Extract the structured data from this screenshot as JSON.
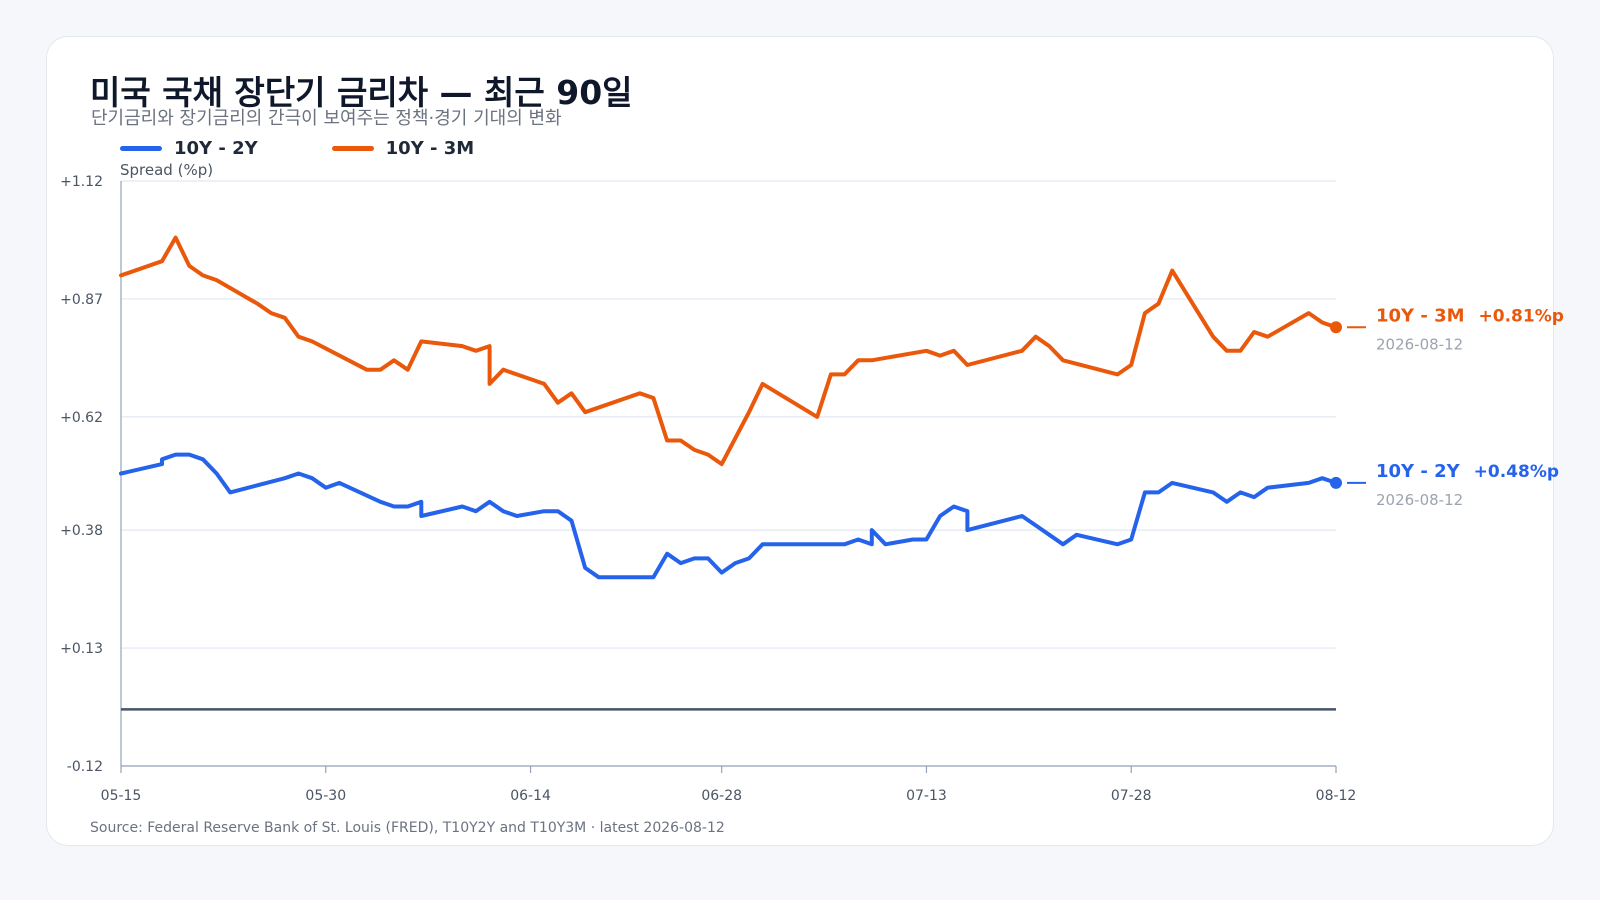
{
  "title": "미국 국채 장단기 금리차 — 최근 90일",
  "subtitle": "단기금리와 장기금리의 간극이 보여주는 정책·경기 기대의 변화",
  "source": "Source: Federal Reserve Bank of St. Louis (FRED), T10Y2Y and T10Y3M · latest 2026-08-12",
  "colors": {
    "series_10y2y": "#2563eb",
    "series_10y3m": "#ea580c",
    "grid": "#e2e8f0",
    "axis": "#94a3b8",
    "zero_line": "#475569"
  },
  "chart_data": {
    "type": "line",
    "title": "미국 국채 장단기 금리차 — 최근 90일",
    "subtitle": "단기금리와 장기금리의 간극이 보여주는 정책·경기 기대의 변화",
    "ylabel": "Spread (%p)",
    "ylim": [
      -0.12,
      1.12
    ],
    "yticks": [
      "+1.12",
      "+0.87",
      "+0.62",
      "+0.38",
      "+0.13",
      "-0.12"
    ],
    "ytick_values": [
      1.12,
      0.87,
      0.62,
      0.38,
      0.13,
      -0.12
    ],
    "x_start": "2026-05-15",
    "x_end": "2026-08-12",
    "xticks": [
      {
        "label": "05-15",
        "date": "2026-05-15"
      },
      {
        "label": "05-30",
        "date": "2026-05-30"
      },
      {
        "label": "06-14",
        "date": "2026-06-14"
      },
      {
        "label": "06-28",
        "date": "2026-06-28"
      },
      {
        "label": "07-13",
        "date": "2026-07-13"
      },
      {
        "label": "07-28",
        "date": "2026-07-28"
      },
      {
        "label": "08-12",
        "date": "2026-08-12"
      }
    ],
    "zero_line": 0,
    "legend_position": "top-left",
    "grid": true,
    "series": [
      {
        "name": "10Y - 2Y",
        "color": "#2563eb",
        "end_value_label": "+0.48%p",
        "end_date_label": "2026-08-12",
        "points": [
          [
            "2026-05-15",
            0.5
          ],
          [
            "2026-05-18",
            0.52
          ],
          [
            "2026-05-18",
            0.53
          ],
          [
            "2026-05-19",
            0.54
          ],
          [
            "2026-05-20",
            0.54
          ],
          [
            "2026-05-21",
            0.53
          ],
          [
            "2026-05-22",
            0.5
          ],
          [
            "2026-05-23",
            0.46
          ],
          [
            "2026-05-27",
            0.49
          ],
          [
            "2026-05-28",
            0.5
          ],
          [
            "2026-05-29",
            0.49
          ],
          [
            "2026-05-30",
            0.47
          ],
          [
            "2026-05-31",
            0.48
          ],
          [
            "2026-06-03",
            0.44
          ],
          [
            "2026-06-04",
            0.43
          ],
          [
            "2026-06-05",
            0.43
          ],
          [
            "2026-06-06",
            0.44
          ],
          [
            "2026-06-06",
            0.41
          ],
          [
            "2026-06-09",
            0.43
          ],
          [
            "2026-06-10",
            0.42
          ],
          [
            "2026-06-11",
            0.44
          ],
          [
            "2026-06-12",
            0.42
          ],
          [
            "2026-06-13",
            0.41
          ],
          [
            "2026-06-15",
            0.42
          ],
          [
            "2026-06-16",
            0.42
          ],
          [
            "2026-06-17",
            0.4
          ],
          [
            "2026-06-18",
            0.3
          ],
          [
            "2026-06-19",
            0.28
          ],
          [
            "2026-06-20",
            0.28
          ],
          [
            "2026-06-22",
            0.28
          ],
          [
            "2026-06-23",
            0.28
          ],
          [
            "2026-06-24",
            0.33
          ],
          [
            "2026-06-25",
            0.31
          ],
          [
            "2026-06-26",
            0.32
          ],
          [
            "2026-06-27",
            0.32
          ],
          [
            "2026-06-28",
            0.29
          ],
          [
            "2026-06-29",
            0.31
          ],
          [
            "2026-06-30",
            0.32
          ],
          [
            "2026-07-01",
            0.35
          ],
          [
            "2026-07-03",
            0.35
          ],
          [
            "2026-07-05",
            0.35
          ],
          [
            "2026-07-07",
            0.35
          ],
          [
            "2026-07-08",
            0.36
          ],
          [
            "2026-07-09",
            0.35
          ],
          [
            "2026-07-09",
            0.38
          ],
          [
            "2026-07-10",
            0.35
          ],
          [
            "2026-07-12",
            0.36
          ],
          [
            "2026-07-13",
            0.36
          ],
          [
            "2026-07-14",
            0.41
          ],
          [
            "2026-07-15",
            0.43
          ],
          [
            "2026-07-16",
            0.42
          ],
          [
            "2026-07-16",
            0.38
          ],
          [
            "2026-07-20",
            0.41
          ],
          [
            "2026-07-21",
            0.39
          ],
          [
            "2026-07-22",
            0.37
          ],
          [
            "2026-07-23",
            0.35
          ],
          [
            "2026-07-24",
            0.37
          ],
          [
            "2026-07-27",
            0.35
          ],
          [
            "2026-07-28",
            0.36
          ],
          [
            "2026-07-29",
            0.46
          ],
          [
            "2026-07-30",
            0.46
          ],
          [
            "2026-07-31",
            0.48
          ],
          [
            "2026-08-03",
            0.46
          ],
          [
            "2026-08-04",
            0.44
          ],
          [
            "2026-08-05",
            0.46
          ],
          [
            "2026-08-06",
            0.45
          ],
          [
            "2026-08-07",
            0.47
          ],
          [
            "2026-08-10",
            0.48
          ],
          [
            "2026-08-11",
            0.49
          ],
          [
            "2026-08-12",
            0.48
          ]
        ]
      },
      {
        "name": "10Y - 3M",
        "color": "#ea580c",
        "end_value_label": "+0.81%p",
        "end_date_label": "2026-08-12",
        "points": [
          [
            "2026-05-15",
            0.92
          ],
          [
            "2026-05-18",
            0.95
          ],
          [
            "2026-05-19",
            1.0
          ],
          [
            "2026-05-20",
            0.94
          ],
          [
            "2026-05-21",
            0.92
          ],
          [
            "2026-05-22",
            0.91
          ],
          [
            "2026-05-25",
            0.86
          ],
          [
            "2026-05-26",
            0.84
          ],
          [
            "2026-05-27",
            0.83
          ],
          [
            "2026-05-28",
            0.79
          ],
          [
            "2026-05-29",
            0.78
          ],
          [
            "2026-06-02",
            0.72
          ],
          [
            "2026-06-03",
            0.72
          ],
          [
            "2026-06-04",
            0.74
          ],
          [
            "2026-06-05",
            0.72
          ],
          [
            "2026-06-06",
            0.78
          ],
          [
            "2026-06-09",
            0.77
          ],
          [
            "2026-06-10",
            0.76
          ],
          [
            "2026-06-11",
            0.77
          ],
          [
            "2026-06-11",
            0.69
          ],
          [
            "2026-06-12",
            0.72
          ],
          [
            "2026-06-14",
            0.7
          ],
          [
            "2026-06-15",
            0.69
          ],
          [
            "2026-06-16",
            0.65
          ],
          [
            "2026-06-17",
            0.67
          ],
          [
            "2026-06-18",
            0.63
          ],
          [
            "2026-06-22",
            0.67
          ],
          [
            "2026-06-23",
            0.66
          ],
          [
            "2026-06-24",
            0.57
          ],
          [
            "2026-06-25",
            0.57
          ],
          [
            "2026-06-26",
            0.55
          ],
          [
            "2026-06-27",
            0.54
          ],
          [
            "2026-06-28",
            0.52
          ],
          [
            "2026-06-30",
            0.63
          ],
          [
            "2026-07-01",
            0.69
          ],
          [
            "2026-07-05",
            0.62
          ],
          [
            "2026-07-06",
            0.71
          ],
          [
            "2026-07-07",
            0.71
          ],
          [
            "2026-07-08",
            0.74
          ],
          [
            "2026-07-09",
            0.74
          ],
          [
            "2026-07-13",
            0.76
          ],
          [
            "2026-07-14",
            0.75
          ],
          [
            "2026-07-15",
            0.76
          ],
          [
            "2026-07-16",
            0.73
          ],
          [
            "2026-07-20",
            0.76
          ],
          [
            "2026-07-21",
            0.79
          ],
          [
            "2026-07-22",
            0.77
          ],
          [
            "2026-07-23",
            0.74
          ],
          [
            "2026-07-27",
            0.71
          ],
          [
            "2026-07-28",
            0.73
          ],
          [
            "2026-07-29",
            0.84
          ],
          [
            "2026-07-30",
            0.86
          ],
          [
            "2026-07-31",
            0.93
          ],
          [
            "2026-08-03",
            0.79
          ],
          [
            "2026-08-04",
            0.76
          ],
          [
            "2026-08-05",
            0.76
          ],
          [
            "2026-08-06",
            0.8
          ],
          [
            "2026-08-07",
            0.79
          ],
          [
            "2026-08-10",
            0.84
          ],
          [
            "2026-08-11",
            0.82
          ],
          [
            "2026-08-12",
            0.81
          ]
        ]
      }
    ]
  }
}
